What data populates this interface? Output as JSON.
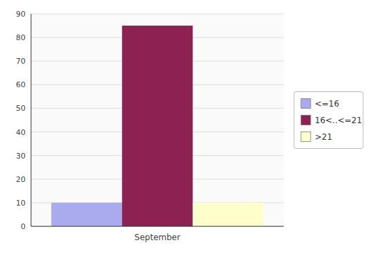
{
  "chart_data": {
    "type": "bar",
    "categories": [
      "September"
    ],
    "series": [
      {
        "name": "<=16",
        "color": "#aaaaee",
        "values": [
          10
        ]
      },
      {
        "name": "16<..<=21",
        "color": "#8b2252",
        "values": [
          85
        ]
      },
      {
        "name": ">21",
        "color": "#ffffcc",
        "values": [
          10
        ]
      }
    ],
    "ylim": [
      0,
      90
    ],
    "yticks": [
      0,
      10,
      20,
      30,
      40,
      50,
      60,
      70,
      80,
      90
    ],
    "grid": true,
    "legend": "right"
  }
}
